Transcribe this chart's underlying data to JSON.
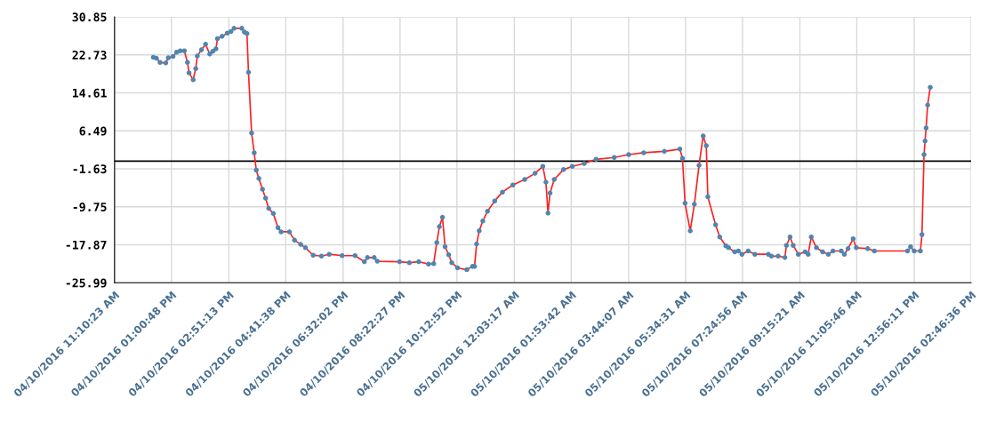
{
  "chart_data": {
    "type": "line",
    "x": [
      "2016-10-04T12:25",
      "2016-10-04T12:31",
      "2016-10-04T12:38",
      "2016-10-04T12:49",
      "2016-10-04T12:54",
      "2016-10-04T13:03",
      "2016-10-04T13:10",
      "2016-10-04T13:17",
      "2016-10-04T13:25",
      "2016-10-04T13:31",
      "2016-10-04T13:34",
      "2016-10-04T13:42",
      "2016-10-04T13:47",
      "2016-10-04T13:50",
      "2016-10-04T13:58",
      "2016-10-04T14:06",
      "2016-10-04T14:14",
      "2016-10-04T14:20",
      "2016-10-04T14:26",
      "2016-10-04T14:29",
      "2016-10-04T14:38",
      "2016-10-04T14:48",
      "2016-10-04T14:55",
      "2016-10-04T15:01",
      "2016-10-04T15:16",
      "2016-10-04T15:21",
      "2016-10-04T15:26",
      "2016-10-04T15:29",
      "2016-10-04T15:35",
      "2016-10-04T15:40",
      "2016-10-04T15:44",
      "2016-10-04T15:49",
      "2016-10-04T15:56",
      "2016-10-04T16:02",
      "2016-10-04T16:08",
      "2016-10-04T16:17",
      "2016-10-04T16:26",
      "2016-10-04T16:32",
      "2016-10-04T16:48",
      "2016-10-04T16:58",
      "2016-10-04T17:10",
      "2016-10-04T17:19",
      "2016-10-04T17:34",
      "2016-10-04T17:50",
      "2016-10-04T18:05",
      "2016-10-04T18:30",
      "2016-10-04T18:55",
      "2016-10-04T19:13",
      "2016-10-04T19:19",
      "2016-10-04T19:32",
      "2016-10-04T19:38",
      "2016-10-04T20:21",
      "2016-10-04T20:40",
      "2016-10-04T20:58",
      "2016-10-04T21:17",
      "2016-10-04T21:27",
      "2016-10-04T21:33",
      "2016-10-04T21:38",
      "2016-10-04T21:44",
      "2016-10-04T21:49",
      "2016-10-04T21:56",
      "2016-10-04T22:02",
      "2016-10-04T22:13",
      "2016-10-04T22:31",
      "2016-10-04T22:42",
      "2016-10-04T22:46",
      "2016-10-04T22:50",
      "2016-10-04T22:55",
      "2016-10-04T23:02",
      "2016-10-04T23:11",
      "2016-10-04T23:25",
      "2016-10-04T23:40",
      "2016-10-05T00:00",
      "2016-10-05T00:23",
      "2016-10-05T00:43",
      "2016-10-05T00:58",
      "2016-10-05T01:04",
      "2016-10-05T01:08",
      "2016-10-05T01:12",
      "2016-10-05T01:20",
      "2016-10-05T01:38",
      "2016-10-05T01:55",
      "2016-10-05T02:18",
      "2016-10-05T02:41",
      "2016-10-05T03:16",
      "2016-10-05T03:44",
      "2016-10-05T04:13",
      "2016-10-05T04:53",
      "2016-10-05T05:23",
      "2016-10-05T05:28",
      "2016-10-05T05:33",
      "2016-10-05T05:43",
      "2016-10-05T05:51",
      "2016-10-05T06:00",
      "2016-10-05T06:08",
      "2016-10-05T06:14",
      "2016-10-05T06:17",
      "2016-10-05T06:32",
      "2016-10-05T06:40",
      "2016-10-05T06:52",
      "2016-10-05T06:57",
      "2016-10-05T07:09",
      "2016-10-05T07:16",
      "2016-10-05T07:23",
      "2016-10-05T07:35",
      "2016-10-05T07:48",
      "2016-10-05T08:14",
      "2016-10-05T08:20",
      "2016-10-05T08:33",
      "2016-10-05T08:46",
      "2016-10-05T08:49",
      "2016-10-05T08:56",
      "2016-10-05T09:02",
      "2016-10-05T09:12",
      "2016-10-05T09:25",
      "2016-10-05T09:31",
      "2016-10-05T09:37",
      "2016-10-05T09:47",
      "2016-10-05T09:59",
      "2016-10-05T10:10",
      "2016-10-05T10:19",
      "2016-10-05T10:35",
      "2016-10-05T10:41",
      "2016-10-05T10:48",
      "2016-10-05T10:58",
      "2016-10-05T11:04",
      "2016-10-05T11:26",
      "2016-10-05T11:39",
      "2016-10-05T12:43",
      "2016-10-05T12:49",
      "2016-10-05T12:56",
      "2016-10-05T13:08",
      "2016-10-05T13:11",
      "2016-10-05T13:15",
      "2016-10-05T13:17",
      "2016-10-05T13:19",
      "2016-10-05T13:22",
      "2016-10-05T13:27"
    ],
    "series": [
      {
        "color": "#ff2020",
        "values": [
          22.2,
          22.0,
          21.1,
          21.0,
          22.1,
          22.4,
          23.3,
          23.6,
          23.6,
          21.1,
          18.9,
          17.4,
          19.8,
          22.5,
          23.8,
          25.0,
          22.9,
          23.5,
          24.0,
          26.2,
          26.7,
          27.4,
          27.7,
          28.4,
          28.4,
          27.6,
          27.3,
          19.0,
          6.0,
          1.8,
          -1.9,
          -3.7,
          -6.0,
          -7.9,
          -10.1,
          -11.2,
          -14.2,
          -15.1,
          -15.1,
          -16.9,
          -17.8,
          -18.5,
          -20.1,
          -20.3,
          -19.9,
          -20.2,
          -20.2,
          -21.5,
          -20.6,
          -20.6,
          -21.4,
          -21.5,
          -21.7,
          -21.5,
          -22.0,
          -21.9,
          -17.4,
          -14.0,
          -12.0,
          -18.3,
          -20.0,
          -21.7,
          -22.8,
          -23.2,
          -22.5,
          -22.5,
          -17.7,
          -14.9,
          -12.8,
          -10.7,
          -8.5,
          -6.6,
          -5.1,
          -3.9,
          -2.6,
          -1.1,
          -4.5,
          -11.1,
          -6.8,
          -3.9,
          -1.8,
          -1.1,
          -0.5,
          0.4,
          0.8,
          1.4,
          1.8,
          2.1,
          2.6,
          0.6,
          -9.0,
          -14.9,
          -9.2,
          -0.9,
          5.4,
          3.3,
          -7.6,
          -13.6,
          -16.2,
          -18.1,
          -18.5,
          -19.4,
          -19.2,
          -19.9,
          -19.2,
          -19.9,
          -19.9,
          -20.3,
          -20.3,
          -20.6,
          -18.0,
          -16.2,
          -18.0,
          -19.9,
          -19.4,
          -19.9,
          -16.2,
          -18.5,
          -19.4,
          -19.9,
          -19.2,
          -19.2,
          -19.9,
          -18.7,
          -16.6,
          -18.5,
          -18.7,
          -19.2,
          -19.2,
          -18.3,
          -19.2,
          -19.2,
          -15.7,
          1.4,
          4.3,
          7.1,
          12.0,
          15.8
        ]
      }
    ],
    "marker": "circle",
    "xlim": [
      "2016-10-04T11:10",
      "2016-10-05T14:46"
    ],
    "xticks": [
      {
        "value": "2016-10-04T11:10",
        "label": "04/10/2016 11:10:23 AM"
      },
      {
        "value": "2016-10-04T13:00",
        "label": "04/10/2016 01:00:48 PM"
      },
      {
        "value": "2016-10-04T14:51",
        "label": "04/10/2016 02:51:13 PM"
      },
      {
        "value": "2016-10-04T16:41",
        "label": "04/10/2016 04:41:38 PM"
      },
      {
        "value": "2016-10-04T18:32",
        "label": "04/10/2016 06:32:02 PM"
      },
      {
        "value": "2016-10-04T20:22",
        "label": "04/10/2016 08:22:27 PM"
      },
      {
        "value": "2016-10-04T22:12",
        "label": "04/10/2016 10:12:52 PM"
      },
      {
        "value": "2016-10-05T00:03",
        "label": "05/10/2016 12:03:17 AM"
      },
      {
        "value": "2016-10-05T01:53",
        "label": "05/10/2016 01:53:42 AM"
      },
      {
        "value": "2016-10-05T03:44",
        "label": "05/10/2016 03:44:07 AM"
      },
      {
        "value": "2016-10-05T05:34",
        "label": "05/10/2016 05:34:31 AM"
      },
      {
        "value": "2016-10-05T07:24",
        "label": "05/10/2016 07:24:56 AM"
      },
      {
        "value": "2016-10-05T09:15",
        "label": "05/10/2016 09:15:21 AM"
      },
      {
        "value": "2016-10-05T11:05",
        "label": "05/10/2016 11:05:46 AM"
      },
      {
        "value": "2016-10-05T12:56",
        "label": "05/10/2016 12:56:11 PM"
      },
      {
        "value": "2016-10-05T14:46",
        "label": "05/10/2016 02:46:36 PM"
      }
    ],
    "ylim": [
      -25.99,
      30.85
    ],
    "yticks": [
      30.85,
      22.73,
      14.61,
      6.49,
      -1.63,
      -9.75,
      -17.87,
      -25.99
    ],
    "ref_lines": [
      {
        "axis": "y",
        "value": 0,
        "color": "#000000"
      }
    ],
    "grid": true
  }
}
